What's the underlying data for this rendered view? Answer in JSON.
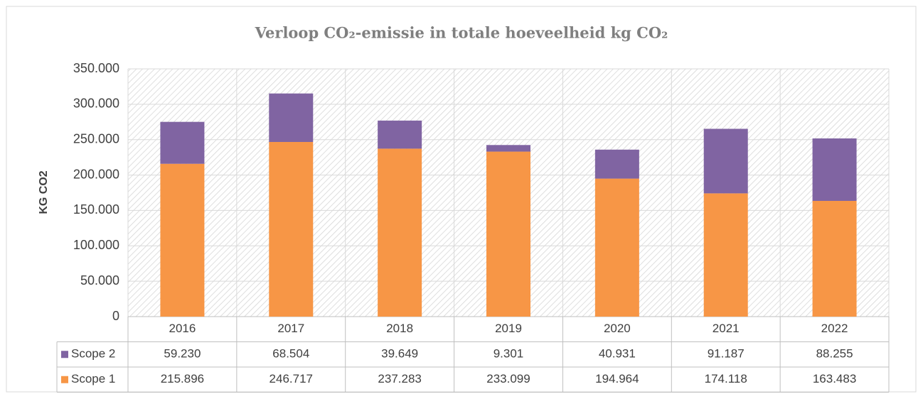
{
  "chart_data": {
    "type": "stacked_bar",
    "title": "Verloop CO₂-emissie in totale hoeveelheid kg CO₂",
    "y_label": "KG CO2",
    "categories": [
      "2016",
      "2017",
      "2018",
      "2019",
      "2020",
      "2021",
      "2022"
    ],
    "series": [
      {
        "name": "Scope 1",
        "color": "#f79646",
        "values": [
          215896,
          246717,
          237283,
          233099,
          194964,
          174118,
          163483
        ],
        "value_labels": [
          "215.896",
          "246.717",
          "237.283",
          "233.099",
          "194.964",
          "174.118",
          "163.483"
        ]
      },
      {
        "name": "Scope 2",
        "color": "#8064a2",
        "values": [
          59230,
          68504,
          39649,
          9301,
          40931,
          91187,
          88255
        ],
        "value_labels": [
          "59.230",
          "68.504",
          "39.649",
          "9.301",
          "40.931",
          "91.187",
          "88.255"
        ]
      }
    ],
    "ylim": [
      0,
      350000
    ],
    "yticks": [
      0,
      {
        "value": 50000,
        "label": "50.000"
      },
      {
        "value": 100000,
        "label": "100.000"
      },
      {
        "value": 150000,
        "label": "150.000"
      },
      {
        "value": 200000,
        "label": "200.000"
      },
      {
        "value": 250000,
        "label": "250.000"
      },
      {
        "value": 300000,
        "label": "300.000"
      },
      {
        "value": 350000,
        "label": "350.000"
      }
    ],
    "grid": true
  }
}
